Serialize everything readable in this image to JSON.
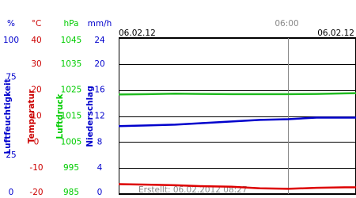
{
  "chart_data": {
    "type": "line",
    "date_left": "06.02.12",
    "date_right": "06.02.12",
    "footer": "Erstellt: 06.02.2012 08:27",
    "x": [
      0,
      1,
      2,
      3,
      4,
      5,
      6,
      7,
      8,
      8.4
    ],
    "xlim": [
      0,
      8.4
    ],
    "xticks": [
      {
        "value": 6,
        "label": "06:00"
      }
    ],
    "axes": [
      {
        "unit": "%",
        "label": "Luftfeuchtigkeit",
        "color": "#0000cc",
        "lim": [
          0,
          100
        ],
        "ticks": [
          100,
          75,
          25,
          0
        ]
      },
      {
        "unit": "°C",
        "label": "Temperatur",
        "color": "#cc0000",
        "lim": [
          -20,
          40
        ],
        "ticks": [
          40,
          30,
          20,
          10,
          0,
          -10,
          -20
        ]
      },
      {
        "unit": "hPa",
        "label": "Luftdruck",
        "color": "#00cc00",
        "lim": [
          985,
          1045
        ],
        "ticks": [
          1045,
          1035,
          1025,
          1015,
          1005,
          995,
          985
        ]
      },
      {
        "unit": "mm/h",
        "label": "Niederschlag",
        "color": "#0000cc",
        "lim": [
          0,
          24
        ],
        "ticks": [
          24,
          20,
          16,
          12,
          8,
          4,
          0
        ]
      }
    ],
    "series": [
      {
        "name": "Luftdruck",
        "axis": 2,
        "color": "#22bb22",
        "values": [
          1023.3,
          1023.4,
          1023.6,
          1023.5,
          1023.4,
          1023.4,
          1023.4,
          1023.5,
          1023.7,
          1023.8
        ]
      },
      {
        "name": "Luftfeuchtigkeit",
        "axis": 0,
        "color": "#0000cc",
        "values": [
          43.5,
          44,
          44.5,
          45.5,
          46.5,
          47.5,
          48,
          49,
          49,
          49
        ]
      },
      {
        "name": "Temperatur",
        "axis": 1,
        "color": "#dd0000",
        "values": [
          -16.2,
          -16.4,
          -16.6,
          -17,
          -17.2,
          -17.8,
          -18,
          -17.6,
          -17.4,
          -17.4
        ]
      }
    ]
  }
}
